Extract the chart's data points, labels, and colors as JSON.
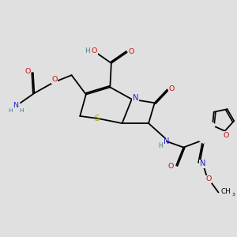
{
  "background_color": "#e0e0e0",
  "bond_color": "#000000",
  "colors": {
    "C": "#000000",
    "N": "#2222cc",
    "O": "#cc1111",
    "S": "#aaaa00",
    "H": "#4a7a7a"
  },
  "figsize": [
    3.0,
    3.0
  ],
  "dpi": 100
}
